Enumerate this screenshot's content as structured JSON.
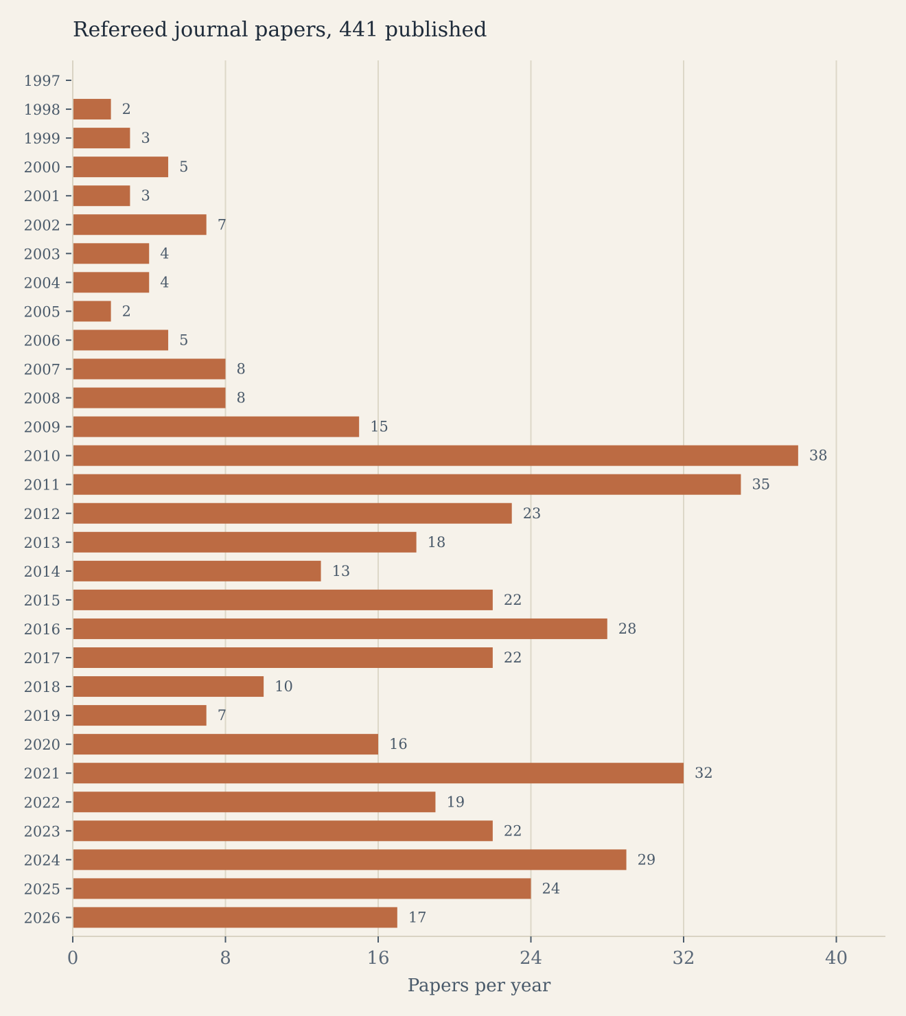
{
  "chart_data": {
    "type": "bar",
    "orientation": "horizontal",
    "title": "Refereed journal papers, 441 published",
    "xlabel": "Papers per year",
    "ylabel": "",
    "xlim": [
      0,
      42.5
    ],
    "xticks": [
      0,
      8,
      16,
      24,
      32,
      40
    ],
    "grid": true,
    "categories": [
      "1997",
      "1998",
      "1999",
      "2000",
      "2001",
      "2002",
      "2003",
      "2004",
      "2005",
      "2006",
      "2007",
      "2008",
      "2009",
      "2010",
      "2011",
      "2012",
      "2013",
      "2014",
      "2015",
      "2016",
      "2017",
      "2018",
      "2019",
      "2020",
      "2021",
      "2022",
      "2023",
      "2024",
      "2025",
      "2026"
    ],
    "values": [
      0,
      2,
      3,
      5,
      3,
      7,
      4,
      4,
      2,
      5,
      8,
      8,
      15,
      38,
      35,
      23,
      18,
      13,
      22,
      28,
      22,
      10,
      7,
      16,
      32,
      19,
      22,
      29,
      24,
      17
    ],
    "value_labels": [
      "",
      "2",
      "3",
      "5",
      "3",
      "7",
      "4",
      "4",
      "2",
      "5",
      "8",
      "8",
      "15",
      "38",
      "35",
      "23",
      "18",
      "13",
      "22",
      "28",
      "22",
      "10",
      "7",
      "16",
      "32",
      "19",
      "22",
      "29",
      "24",
      "17"
    ],
    "colors": {
      "bar": "#bc6b43",
      "background": "#f6f2ea",
      "grid": "#ddd8c8",
      "text": "#4a5a6a",
      "title": "#1e2b3a"
    }
  }
}
